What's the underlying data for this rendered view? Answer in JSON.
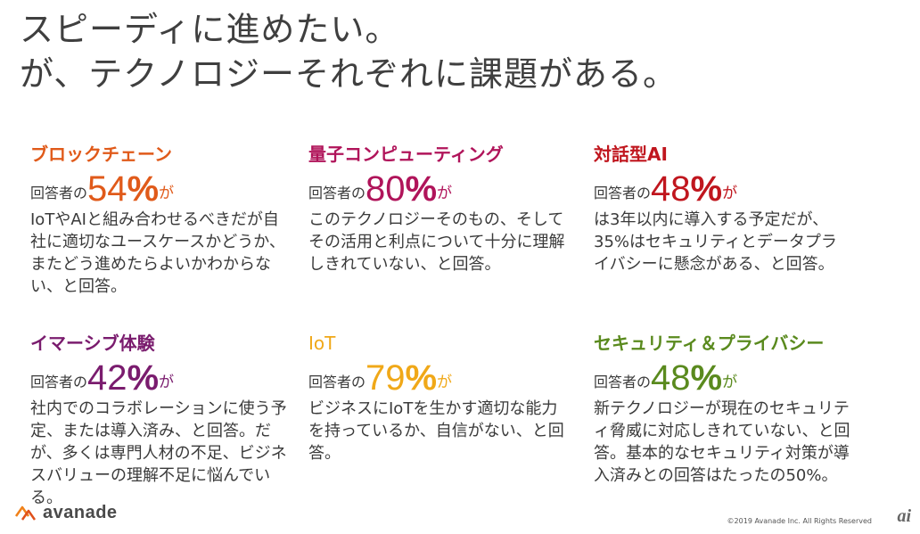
{
  "title": {
    "line1": "スピーディに進めたい。",
    "line2": "が、テクノロジーそれぞれに課題がある。"
  },
  "colors": {
    "blockchain": "#e05a1a",
    "quantum": "#b0145a",
    "ai": "#c0161e",
    "immersive": "#7a1c6e",
    "iot": "#f0a818",
    "security": "#5a8a1e"
  },
  "cards": [
    {
      "heading": "ブロックチェーン",
      "stat_prefix": "回答者の",
      "stat_number": "54",
      "stat_percent": "%",
      "stat_suffix": "が",
      "description": "IoTやAIと組み合わせるべきだが自社に適切なユースケースかどうか、またどう進めたらよいかわからない、と回答。"
    },
    {
      "heading": "量子コンピューティング",
      "stat_prefix": "回答者の",
      "stat_number": "80",
      "stat_percent": "%",
      "stat_suffix": "が",
      "description": "このテクノロジーそのもの、そしてその活用と利点について十分に理解しきれていない、と回答。"
    },
    {
      "heading": "対話型AI",
      "stat_prefix": "回答者の",
      "stat_number": "48",
      "stat_percent": "%",
      "stat_suffix": "が",
      "description": "は3年以内に導入する予定だが、35%はセキュリティとデータプライバシーに懸念がある、と回答。"
    },
    {
      "heading": "イマーシブ体験",
      "stat_prefix": "回答者の",
      "stat_number": "42",
      "stat_percent": "%",
      "stat_suffix": "が",
      "description": "社内でのコラボレーションに使う予定、または導入済み、と回答。だが、多くは専門人材の不足、ビジネスバリューの理解不足に悩んでいる。"
    },
    {
      "heading": "IoT",
      "stat_prefix": "回答者の",
      "stat_number": "79",
      "stat_percent": "%",
      "stat_suffix": "が",
      "description": "ビジネスにIoTを生かす適切な能力を持っているか、自信がない、と回答。"
    },
    {
      "heading": "セキュリティ＆プライバシー",
      "stat_prefix": "回答者の",
      "stat_number": "48",
      "stat_percent": "%",
      "stat_suffix": "が",
      "description": "新テクノロジーが現在のセキュリティ脅威に対応しきれていない、と回答。基本的なセキュリティ対策が導入済みとの回答はたったの50%。"
    }
  ],
  "footer": {
    "logo_text": "avanade",
    "copyright": "©2019 Avanade Inc. All Rights Reserved",
    "watermark": "ai"
  }
}
